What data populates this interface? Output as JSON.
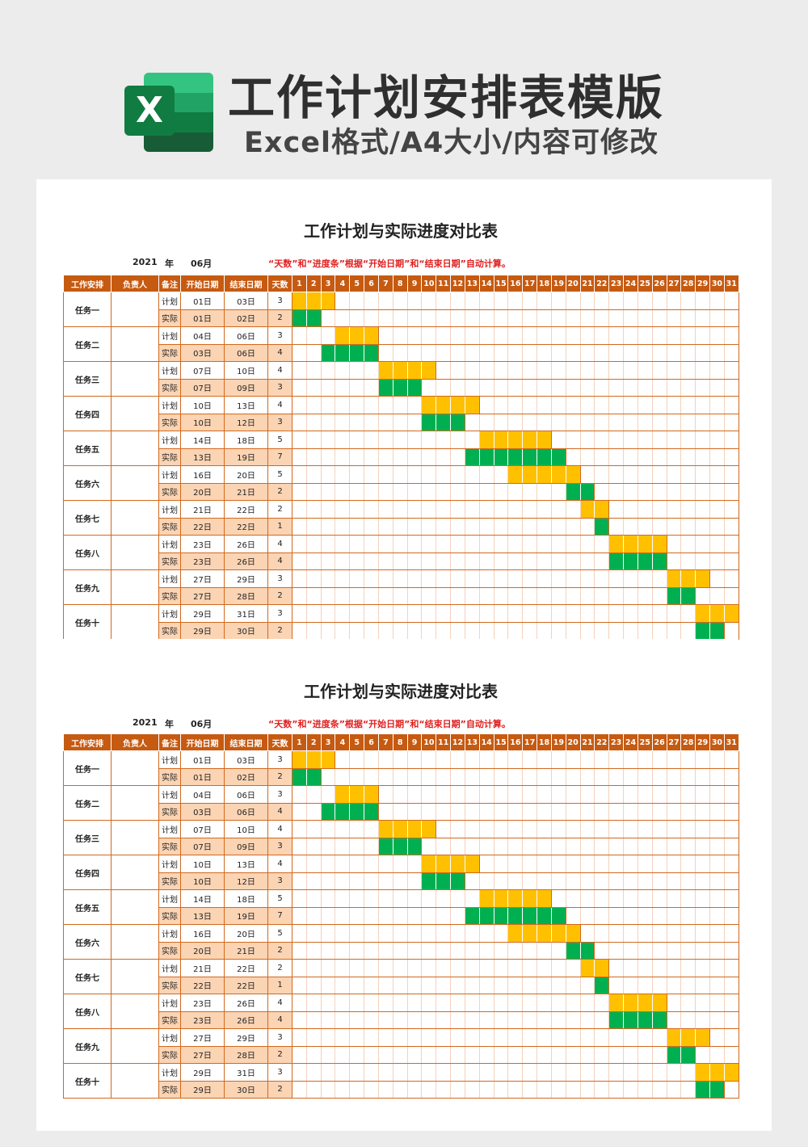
{
  "header": {
    "title": "工作计划安排表模版",
    "subtitle": "Excel格式/A4大小/内容可修改",
    "logo_letter": "X",
    "logo_colors": [
      "#33c481",
      "#21a366",
      "#107c41",
      "#185c37"
    ]
  },
  "sheet": {
    "title": "工作计划与实际进度对比表",
    "year": "2021",
    "year_label": "年",
    "month": "06月",
    "note": "“天数”和“进度条”根据“开始日期”和“结束日期”自动计算。",
    "columns": {
      "task": "工作安排",
      "owner": "负责人",
      "remark": "备注",
      "start": "开始日期",
      "end": "结束日期",
      "days": "天数"
    },
    "day_headers": [
      "1",
      "2",
      "3",
      "4",
      "5",
      "6",
      "7",
      "8",
      "9",
      "10",
      "11",
      "12",
      "13",
      "14",
      "15",
      "16",
      "17",
      "18",
      "19",
      "20",
      "21",
      "22",
      "23",
      "24",
      "25",
      "26",
      "27",
      "28",
      "29",
      "30",
      "31"
    ],
    "colors": {
      "plan": "#ffc000",
      "actual": "#00b050",
      "header": "#c65a11",
      "actual_row": "#fbd4b4"
    },
    "tasks": [
      {
        "name": "任务一",
        "owner": "",
        "plan": {
          "label": "计划",
          "start": "01日",
          "end": "03日",
          "days": "3",
          "s": 1,
          "e": 3
        },
        "actual": {
          "label": "实际",
          "start": "01日",
          "end": "02日",
          "days": "2",
          "s": 1,
          "e": 2
        }
      },
      {
        "name": "任务二",
        "owner": "",
        "plan": {
          "label": "计划",
          "start": "04日",
          "end": "06日",
          "days": "3",
          "s": 4,
          "e": 6
        },
        "actual": {
          "label": "实际",
          "start": "03日",
          "end": "06日",
          "days": "4",
          "s": 3,
          "e": 6
        }
      },
      {
        "name": "任务三",
        "owner": "",
        "plan": {
          "label": "计划",
          "start": "07日",
          "end": "10日",
          "days": "4",
          "s": 7,
          "e": 10
        },
        "actual": {
          "label": "实际",
          "start": "07日",
          "end": "09日",
          "days": "3",
          "s": 7,
          "e": 9
        }
      },
      {
        "name": "任务四",
        "owner": "",
        "plan": {
          "label": "计划",
          "start": "10日",
          "end": "13日",
          "days": "4",
          "s": 10,
          "e": 13
        },
        "actual": {
          "label": "实际",
          "start": "10日",
          "end": "12日",
          "days": "3",
          "s": 10,
          "e": 12
        }
      },
      {
        "name": "任务五",
        "owner": "",
        "plan": {
          "label": "计划",
          "start": "14日",
          "end": "18日",
          "days": "5",
          "s": 14,
          "e": 18
        },
        "actual": {
          "label": "实际",
          "start": "13日",
          "end": "19日",
          "days": "7",
          "s": 13,
          "e": 19
        }
      },
      {
        "name": "任务六",
        "owner": "",
        "plan": {
          "label": "计划",
          "start": "16日",
          "end": "20日",
          "days": "5",
          "s": 16,
          "e": 20
        },
        "actual": {
          "label": "实际",
          "start": "20日",
          "end": "21日",
          "days": "2",
          "s": 20,
          "e": 21
        }
      },
      {
        "name": "任务七",
        "owner": "",
        "plan": {
          "label": "计划",
          "start": "21日",
          "end": "22日",
          "days": "2",
          "s": 21,
          "e": 22
        },
        "actual": {
          "label": "实际",
          "start": "22日",
          "end": "22日",
          "days": "1",
          "s": 22,
          "e": 22
        }
      },
      {
        "name": "任务八",
        "owner": "",
        "plan": {
          "label": "计划",
          "start": "23日",
          "end": "26日",
          "days": "4",
          "s": 23,
          "e": 26
        },
        "actual": {
          "label": "实际",
          "start": "23日",
          "end": "26日",
          "days": "4",
          "s": 23,
          "e": 26
        }
      },
      {
        "name": "任务九",
        "owner": "",
        "plan": {
          "label": "计划",
          "start": "27日",
          "end": "29日",
          "days": "3",
          "s": 27,
          "e": 29
        },
        "actual": {
          "label": "实际",
          "start": "27日",
          "end": "28日",
          "days": "2",
          "s": 27,
          "e": 28
        }
      },
      {
        "name": "任务十",
        "owner": "",
        "plan": {
          "label": "计划",
          "start": "29日",
          "end": "31日",
          "days": "3",
          "s": 29,
          "e": 31
        },
        "actual": {
          "label": "实际",
          "start": "29日",
          "end": "30日",
          "days": "2",
          "s": 29,
          "e": 30
        }
      }
    ]
  }
}
